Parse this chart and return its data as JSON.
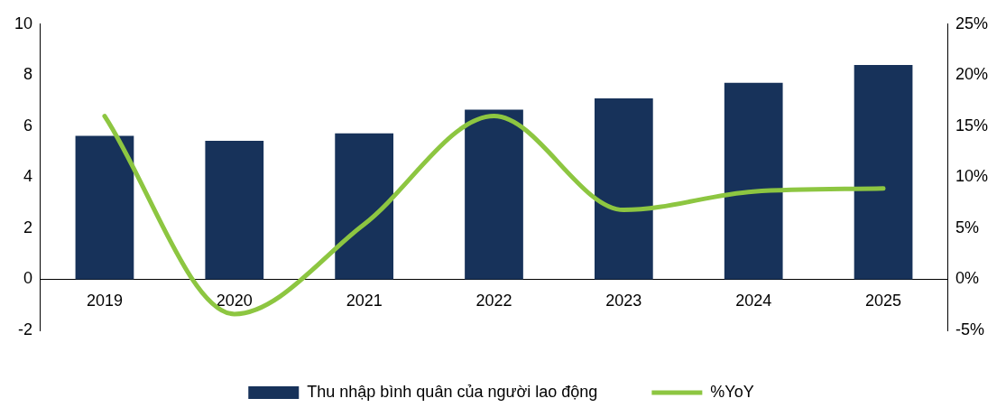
{
  "chart_data": {
    "type": "bar",
    "categories": [
      "2019",
      "2020",
      "2021",
      "2022",
      "2023",
      "2024",
      "2025"
    ],
    "series": [
      {
        "name": "Thu nhập bình quân của người lao động",
        "color": "#17325a",
        "values": [
          5.62,
          5.43,
          5.72,
          6.65,
          7.09,
          7.7,
          8.4
        ]
      },
      {
        "name": "%YoY",
        "type": "line",
        "axis": "y2",
        "color": "#8dc641",
        "values": [
          16.0,
          -3.4,
          5.4,
          16.0,
          6.8,
          8.6,
          8.9
        ]
      }
    ],
    "ylim": [
      -2,
      10
    ],
    "yticks": [
      -2,
      0,
      2,
      4,
      6,
      8,
      10
    ],
    "y2lim": [
      -5,
      25
    ],
    "y2ticks": [
      {
        "value": -5,
        "label": "-5%"
      },
      {
        "value": 0,
        "label": "0%"
      },
      {
        "value": 5,
        "label": "5%"
      },
      {
        "value": 10,
        "label": "10%"
      },
      {
        "value": 15,
        "label": "15%"
      },
      {
        "value": 20,
        "label": "20%"
      },
      {
        "value": 25,
        "label": "25%"
      }
    ],
    "grid": false,
    "legend": "bottom",
    "marker": "none",
    "line_style": "solid"
  }
}
